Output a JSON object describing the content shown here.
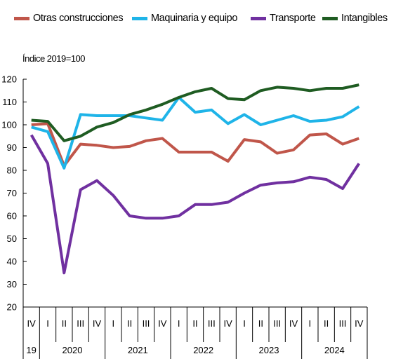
{
  "chart_data": {
    "type": "line",
    "ylabel": "Índice 2019=100",
    "ylim": [
      20,
      120
    ],
    "yticks": [
      20,
      30,
      40,
      50,
      60,
      70,
      80,
      90,
      100,
      110,
      120
    ],
    "grid": false,
    "legend_position": "top",
    "quarter_labels": [
      "IV",
      "I",
      "II",
      "III",
      "IV",
      "I",
      "II",
      "III",
      "IV",
      "I",
      "II",
      "III",
      "IV",
      "I",
      "II",
      "III",
      "IV",
      "I",
      "II",
      "III",
      "IV"
    ],
    "year_labels": [
      "19",
      "2020",
      "2021",
      "2022",
      "2023",
      "2024"
    ],
    "series": [
      {
        "name": "Otras construcciones",
        "color": "#c0564a",
        "values": [
          100,
          100.5,
          82,
          91.5,
          91,
          90,
          90.5,
          93,
          94,
          88,
          88,
          88,
          84,
          93.5,
          92.5,
          87.5,
          89,
          95.5,
          96,
          91.5,
          94
        ]
      },
      {
        "name": "Maquinaria y equipo",
        "color": "#1fb4e8",
        "values": [
          99,
          97,
          81,
          104.5,
          104,
          104,
          104,
          103,
          102,
          112,
          105.5,
          106.5,
          100.5,
          104.5,
          100,
          102,
          104,
          101.5,
          102,
          103.5,
          108
        ]
      },
      {
        "name": "Transporte",
        "color": "#7030a0",
        "values": [
          95.5,
          83,
          35,
          71.5,
          75.5,
          69,
          60,
          59,
          59,
          60,
          65,
          65,
          66,
          70,
          73.5,
          74.5,
          75,
          77,
          76,
          72,
          83
        ]
      },
      {
        "name": "Intangibles",
        "color": "#1f5c22",
        "values": [
          102,
          101.5,
          93,
          95,
          99,
          101,
          104.5,
          106.5,
          109,
          112,
          114.5,
          116,
          111.5,
          111,
          115,
          116.5,
          116,
          115,
          116,
          116,
          117.5
        ]
      }
    ]
  }
}
